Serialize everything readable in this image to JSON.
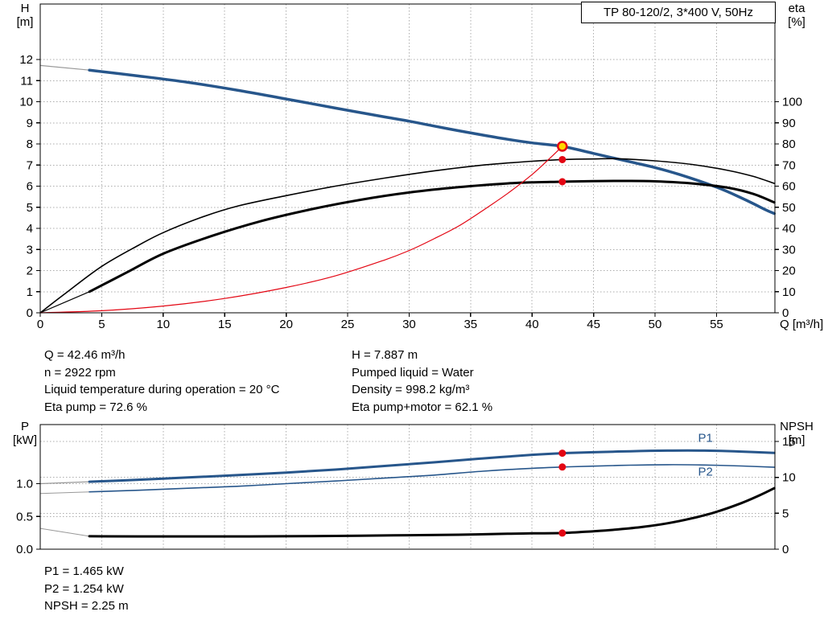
{
  "info_top": {
    "left": [
      "Q = 42.46 m³/h",
      "n = 2922 rpm",
      "Liquid temperature during operation = 20 °C",
      "Eta pump = 72.6 %"
    ],
    "right": [
      "H = 7.887 m",
      "Pumped liquid = Water",
      "Density = 998.2 kg/m³",
      "Eta pump+motor = 62.1 %"
    ]
  },
  "info_bottom": [
    "P1 = 1.465 kW",
    "P2 = 1.254 kW",
    "NPSH = 2.25 m"
  ],
  "colors": {
    "curve_blue": "#27568b",
    "curve_red": "#e30613",
    "curve_black": "#000000",
    "marker_yellow": "#ffd700",
    "lead_gray": "#999999",
    "grid_gray": "#adadad"
  },
  "chart_data": [
    {
      "id": "qh-eta",
      "type": "line",
      "title": "TP 80-120/2, 3*400 V, 50Hz",
      "x_axis": {
        "title": "Q [m³/h]",
        "min": 0,
        "max": 59.75,
        "ticks": [
          0,
          5,
          10,
          15,
          20,
          25,
          30,
          35,
          40,
          45,
          50,
          55
        ],
        "show_labels": true
      },
      "y_left": {
        "title_lines": [
          "H",
          "[m]"
        ],
        "min": 0,
        "max": 14.63,
        "ticks": [
          0,
          1,
          2,
          3,
          4,
          5,
          6,
          7,
          8,
          9,
          10,
          11,
          12
        ],
        "grid": true
      },
      "y_right": {
        "title_lines": [
          "eta",
          "[%]"
        ],
        "min": 0,
        "max": 146.3,
        "ticks": [
          0,
          10,
          20,
          30,
          40,
          50,
          60,
          70,
          80,
          90,
          100
        ],
        "grid": false
      },
      "series": [
        {
          "name": "qh-lead-in",
          "axis": "left",
          "color": "#999999",
          "width": 1.2,
          "x": [
            0,
            4
          ],
          "y": [
            11.72,
            11.5
          ]
        },
        {
          "name": "qh-curve",
          "axis": "left",
          "color": "#27568b",
          "width": 3.5,
          "x": [
            4,
            8,
            12,
            16,
            20,
            24,
            28,
            30,
            32,
            34,
            36,
            38,
            40,
            42.46,
            45,
            48,
            50,
            52,
            55,
            57,
            59,
            59.7
          ],
          "y": [
            11.5,
            11.22,
            10.92,
            10.55,
            10.13,
            9.7,
            9.28,
            9.08,
            8.85,
            8.63,
            8.42,
            8.22,
            8.05,
            7.887,
            7.55,
            7.15,
            6.88,
            6.55,
            5.95,
            5.45,
            4.88,
            4.7
          ]
        },
        {
          "name": "eta-pump",
          "axis": "right",
          "color": "#000000",
          "width": 1.6,
          "x": [
            0,
            2,
            5,
            8,
            10,
            13,
            16,
            20,
            24,
            28,
            32,
            36,
            40,
            42.46,
            45,
            47,
            50,
            53,
            56,
            58,
            59.7
          ],
          "y": [
            0,
            9,
            22,
            32,
            38,
            45,
            50.5,
            55.5,
            60,
            63.8,
            67.2,
            70,
            71.8,
            72.6,
            72.9,
            73,
            72,
            70.3,
            67.4,
            64.6,
            61.3
          ]
        },
        {
          "name": "eta-pump-motor-lead-in",
          "axis": "right",
          "color": "#000000",
          "width": 1.2,
          "x": [
            0,
            4
          ],
          "y": [
            0,
            10
          ]
        },
        {
          "name": "eta-pump-motor",
          "axis": "right",
          "color": "#000000",
          "width": 3,
          "x": [
            4,
            7,
            10,
            14,
            18,
            22,
            26,
            30,
            34,
            38,
            40,
            42.46,
            45,
            48,
            50,
            53,
            56,
            58,
            59.7
          ],
          "y": [
            10,
            19,
            28,
            36.5,
            43.5,
            49,
            53.5,
            57,
            59.5,
            61.3,
            61.8,
            62.1,
            62.4,
            62.5,
            62.3,
            61.3,
            59.2,
            56.3,
            52.3
          ]
        },
        {
          "name": "system-curve",
          "axis": "left",
          "color": "#e30613",
          "width": 1.2,
          "x": [
            0,
            5,
            10,
            15,
            20,
            24,
            28,
            30,
            32,
            34,
            36,
            38,
            40,
            41.5,
            42.46
          ],
          "y": [
            0,
            0.1,
            0.32,
            0.68,
            1.2,
            1.75,
            2.5,
            2.95,
            3.5,
            4.1,
            4.85,
            5.65,
            6.55,
            7.35,
            7.887
          ]
        }
      ],
      "markers": [
        {
          "name": "duty-point",
          "x": 42.46,
          "y": 7.887,
          "axis": "left",
          "fill": "#ffd700",
          "stroke": "#e30613",
          "r": 5.5
        },
        {
          "name": "eta-pump-point",
          "x": 42.46,
          "y": 72.6,
          "axis": "right",
          "fill": "#e30613",
          "r": 4.5
        },
        {
          "name": "eta-pump-motor-point",
          "x": 42.46,
          "y": 62.1,
          "axis": "right",
          "fill": "#e30613",
          "r": 4.5
        }
      ],
      "annotations": []
    },
    {
      "id": "power-npsh",
      "type": "line",
      "title": "",
      "x_axis": {
        "title": "",
        "min": 0,
        "max": 59.75,
        "ticks": [
          0,
          5,
          10,
          15,
          20,
          25,
          30,
          35,
          40,
          45,
          50,
          55
        ],
        "show_labels": false
      },
      "y_left": {
        "title_lines": [
          "P",
          "[kW]"
        ],
        "min": 0,
        "max": 1.902,
        "ticks": [
          0,
          0.5,
          1
        ],
        "tick_labels": [
          "0.0",
          "0.5",
          "1.0"
        ],
        "grid": true
      },
      "y_right": {
        "title_lines": [
          "NPSH",
          "[m]"
        ],
        "min": 0,
        "max": 17.35,
        "ticks": [
          0,
          5,
          10,
          15
        ],
        "grid": true
      },
      "series": [
        {
          "name": "p1-lead-in",
          "axis": "left",
          "color": "#999999",
          "width": 1.2,
          "x": [
            0,
            4
          ],
          "y": [
            1.0,
            1.03
          ]
        },
        {
          "name": "p1-curve",
          "axis": "left",
          "color": "#27568b",
          "width": 3,
          "x": [
            4,
            8,
            12,
            16,
            20,
            24,
            28,
            32,
            36,
            40,
            42.46,
            45,
            48,
            51,
            54,
            57,
            59.7
          ],
          "y": [
            1.03,
            1.06,
            1.095,
            1.13,
            1.17,
            1.215,
            1.27,
            1.325,
            1.385,
            1.44,
            1.465,
            1.48,
            1.495,
            1.505,
            1.505,
            1.49,
            1.47
          ]
        },
        {
          "name": "p2-lead-in",
          "axis": "left",
          "color": "#999999",
          "width": 1,
          "x": [
            0,
            4
          ],
          "y": [
            0.85,
            0.875
          ]
        },
        {
          "name": "p2-curve",
          "axis": "left",
          "color": "#27568b",
          "width": 1.6,
          "x": [
            4,
            8,
            12,
            16,
            20,
            24,
            28,
            32,
            36,
            40,
            42.46,
            45,
            48,
            51,
            54,
            57,
            59.7
          ],
          "y": [
            0.875,
            0.9,
            0.93,
            0.96,
            1.0,
            1.04,
            1.085,
            1.13,
            1.19,
            1.235,
            1.254,
            1.268,
            1.282,
            1.29,
            1.285,
            1.27,
            1.25
          ]
        },
        {
          "name": "npsh-lead-in",
          "axis": "right",
          "color": "#999999",
          "width": 1,
          "x": [
            0,
            4
          ],
          "y": [
            2.9,
            1.8
          ]
        },
        {
          "name": "npsh-curve",
          "axis": "right",
          "color": "#000000",
          "width": 3,
          "x": [
            4,
            8,
            14,
            20,
            26,
            30,
            34,
            38,
            40,
            42.46,
            45,
            47,
            49,
            51,
            53,
            55,
            57,
            58.5,
            59.7
          ],
          "y": [
            1.8,
            1.78,
            1.78,
            1.8,
            1.88,
            1.95,
            2.02,
            2.15,
            2.2,
            2.25,
            2.5,
            2.75,
            3.1,
            3.6,
            4.3,
            5.2,
            6.4,
            7.5,
            8.5
          ]
        }
      ],
      "markers": [
        {
          "name": "p1-point",
          "x": 42.46,
          "y": 1.465,
          "axis": "left",
          "fill": "#e30613",
          "r": 4.5
        },
        {
          "name": "p2-point",
          "x": 42.46,
          "y": 1.254,
          "axis": "left",
          "fill": "#e30613",
          "r": 4.5
        },
        {
          "name": "npsh-point",
          "x": 42.46,
          "y": 2.25,
          "axis": "right",
          "fill": "#e30613",
          "r": 4.5
        }
      ],
      "annotations": [
        {
          "text": "P1",
          "x": 53.5,
          "y": 1.64,
          "axis": "left",
          "color": "#27568b"
        },
        {
          "text": "P2",
          "x": 53.5,
          "y": 1.12,
          "axis": "left",
          "color": "#27568b"
        }
      ]
    }
  ]
}
